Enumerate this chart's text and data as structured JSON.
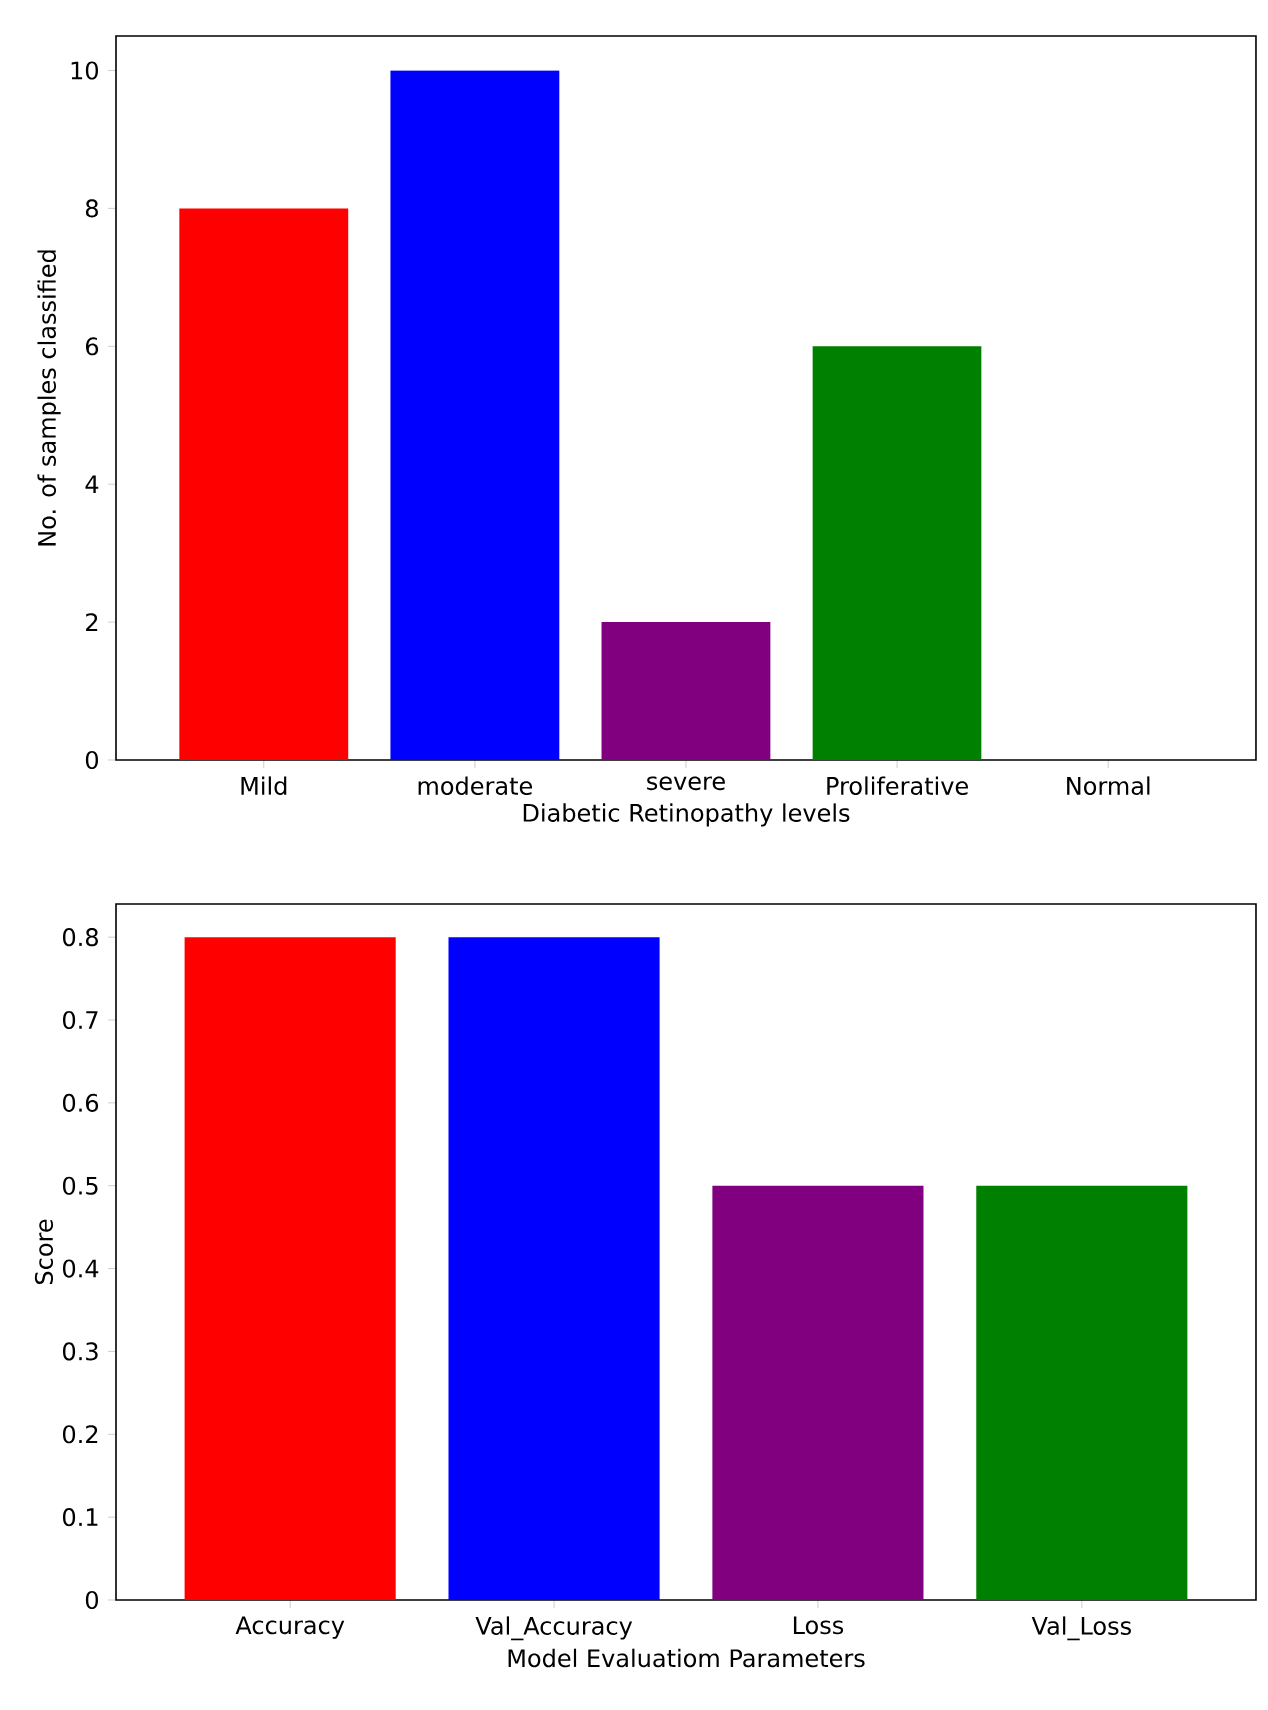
{
  "chart_data": [
    {
      "type": "bar",
      "xlabel": "Diabetic Retinopathy levels",
      "ylabel": "No. of samples classified",
      "categories": [
        "Mild",
        "moderate",
        "severe",
        "Proliferative",
        "Normal"
      ],
      "values": [
        8,
        10,
        2,
        6,
        0
      ],
      "colors": [
        "#ff0000",
        "#0000ff",
        "#800080",
        "#008000",
        "#ff0000"
      ],
      "ylim": [
        0,
        10.5
      ],
      "yticks": [
        0,
        2,
        4,
        6,
        8,
        10
      ]
    },
    {
      "type": "bar",
      "xlabel": "Model Evaluatiom Parameters",
      "ylabel": "Score",
      "categories": [
        "Accuracy",
        "Val_Accuracy",
        "Loss",
        "Val_Loss"
      ],
      "values": [
        0.8,
        0.8,
        0.5,
        0.5
      ],
      "colors": [
        "#ff0000",
        "#0000ff",
        "#800080",
        "#008000"
      ],
      "ylim": [
        0,
        0.84
      ],
      "yticks": [
        0,
        0.1,
        0.2,
        0.3,
        0.4,
        0.5,
        0.6,
        0.7,
        0.8
      ]
    }
  ]
}
